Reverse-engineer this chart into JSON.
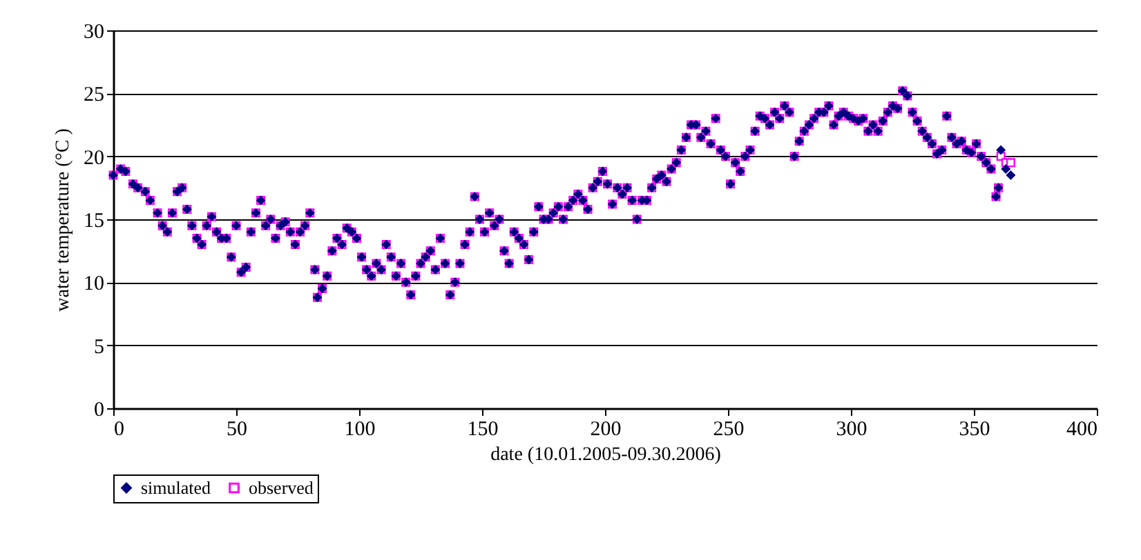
{
  "chart_data": {
    "type": "scatter",
    "xlabel": "date (10.01.2005-09.30.2006)",
    "ylabel": "water temperature (°C )",
    "xlim": [
      0,
      400
    ],
    "xticks": [
      0,
      50,
      100,
      150,
      200,
      250,
      300,
      350,
      400
    ],
    "ylim": [
      0,
      30
    ],
    "yticks": [
      0,
      5,
      10,
      15,
      20,
      25,
      30
    ],
    "grid": "y",
    "legend": "bottom",
    "x": [
      0,
      3,
      5,
      8,
      10,
      13,
      15,
      18,
      20,
      22,
      24,
      26,
      28,
      30,
      32,
      34,
      36,
      38,
      40,
      42,
      44,
      46,
      48,
      50,
      52,
      54,
      56,
      58,
      60,
      62,
      64,
      66,
      68,
      70,
      72,
      74,
      76,
      78,
      80,
      82,
      83,
      85,
      87,
      89,
      91,
      93,
      95,
      97,
      99,
      101,
      103,
      105,
      107,
      109,
      111,
      113,
      115,
      117,
      119,
      121,
      123,
      125,
      127,
      129,
      131,
      133,
      135,
      137,
      139,
      141,
      143,
      145,
      147,
      149,
      151,
      153,
      155,
      157,
      159,
      161,
      163,
      165,
      167,
      169,
      171,
      173,
      175,
      177,
      179,
      181,
      183,
      185,
      187,
      189,
      191,
      193,
      195,
      197,
      199,
      201,
      203,
      205,
      207,
      209,
      211,
      213,
      215,
      217,
      219,
      221,
      223,
      225,
      227,
      229,
      231,
      233,
      235,
      237,
      239,
      241,
      243,
      245,
      247,
      249,
      251,
      253,
      255,
      257,
      259,
      261,
      263,
      265,
      267,
      269,
      271,
      273,
      275,
      277,
      279,
      281,
      283,
      285,
      287,
      289,
      291,
      293,
      295,
      297,
      299,
      301,
      303,
      305,
      307,
      309,
      311,
      313,
      315,
      317,
      319,
      321,
      323,
      325,
      327,
      329,
      331,
      333,
      335,
      337,
      339,
      341,
      343,
      345,
      347,
      349,
      351,
      353,
      355,
      357,
      359,
      360,
      361,
      363,
      365
    ],
    "series": [
      {
        "name": "simulated",
        "color": "#000080",
        "marker": "diamond",
        "values": [
          18.5,
          19,
          18.8,
          17.8,
          17.5,
          17.2,
          16.5,
          15.5,
          14.5,
          14,
          15.5,
          17.2,
          17.5,
          15.8,
          14.5,
          13.5,
          13,
          14.5,
          15.2,
          14,
          13.5,
          13.5,
          12,
          14.5,
          10.8,
          11.2,
          14,
          15.5,
          16.5,
          14.5,
          15,
          13.5,
          14.5,
          14.8,
          14,
          13,
          14,
          14.5,
          15.5,
          11,
          8.8,
          9.5,
          10.5,
          12.5,
          13.5,
          13,
          14.3,
          14,
          13.5,
          12,
          11,
          10.5,
          11.5,
          11,
          13,
          12,
          10.5,
          11.5,
          10,
          9,
          10.5,
          11.5,
          12,
          12.5,
          11,
          13.5,
          11.5,
          9,
          10,
          11.5,
          13,
          14,
          16.8,
          15,
          14,
          15.5,
          14.5,
          15,
          12.5,
          11.5,
          14,
          13.5,
          13,
          11.8,
          14,
          16,
          15,
          15,
          15.5,
          16,
          15,
          16,
          16.5,
          17,
          16.5,
          15.8,
          17.5,
          18,
          18.8,
          17.8,
          16.2,
          17.5,
          17,
          17.5,
          16.5,
          15,
          16.5,
          16.5,
          17.5,
          18.2,
          18.5,
          18,
          19,
          19.5,
          20.5,
          21.5,
          22.5,
          22.5,
          21.5,
          22,
          21,
          23,
          20.5,
          20,
          17.8,
          19.5,
          18.8,
          20,
          20.5,
          22,
          23.2,
          23,
          22.5,
          23.5,
          23,
          24,
          23.5,
          20,
          21.2,
          22,
          22.5,
          23,
          23.5,
          23.5,
          24,
          22.5,
          23.2,
          23.5,
          23.2,
          23,
          22.8,
          23,
          22,
          22.5,
          22,
          22.8,
          23.5,
          24,
          23.8,
          25.2,
          24.8,
          23.5,
          22.8,
          22,
          21.5,
          21,
          20.2,
          20.5,
          23.2,
          21.5,
          21,
          21.2,
          20.5,
          20.3,
          21,
          20,
          19.5,
          19,
          16.8,
          17.5,
          20.5,
          19,
          18.5
        ]
      },
      {
        "name": "observed",
        "color": "#ff00ff",
        "marker": "square",
        "values": [
          18.5,
          19,
          18.8,
          17.8,
          17.5,
          17.2,
          16.5,
          15.5,
          14.5,
          14,
          15.5,
          17.2,
          17.5,
          15.8,
          14.5,
          13.5,
          13,
          14.5,
          15.2,
          14,
          13.5,
          13.5,
          12,
          14.5,
          10.8,
          11.2,
          14,
          15.5,
          16.5,
          14.5,
          15,
          13.5,
          14.5,
          14.8,
          14,
          13,
          14,
          14.5,
          15.5,
          11,
          8.8,
          9.5,
          10.5,
          12.5,
          13.5,
          13,
          14.3,
          14,
          13.5,
          12,
          11,
          10.5,
          11.5,
          11,
          13,
          12,
          10.5,
          11.5,
          10,
          9,
          10.5,
          11.5,
          12,
          12.5,
          11,
          13.5,
          11.5,
          9,
          10,
          11.5,
          13,
          14,
          16.8,
          15,
          14,
          15.5,
          14.5,
          15,
          12.5,
          11.5,
          14,
          13.5,
          13,
          11.8,
          14,
          16,
          15,
          15,
          15.5,
          16,
          15,
          16,
          16.5,
          17,
          16.5,
          15.8,
          17.5,
          18,
          18.8,
          17.8,
          16.2,
          17.5,
          17,
          17.5,
          16.5,
          15,
          16.5,
          16.5,
          17.5,
          18.2,
          18.5,
          18,
          19,
          19.5,
          20.5,
          21.5,
          22.5,
          22.5,
          21.5,
          22,
          21,
          23,
          20.5,
          20,
          17.8,
          19.5,
          18.8,
          20,
          20.5,
          22,
          23.2,
          23,
          22.5,
          23.5,
          23,
          24,
          23.5,
          20,
          21.2,
          22,
          22.5,
          23,
          23.5,
          23.5,
          24,
          22.5,
          23.2,
          23.5,
          23.2,
          23,
          22.8,
          23,
          22,
          22.5,
          22,
          22.8,
          23.5,
          24,
          23.8,
          25.2,
          24.8,
          23.5,
          22.8,
          22,
          21.5,
          21,
          20.2,
          20.5,
          23.2,
          21.5,
          21,
          21.2,
          20.5,
          20.3,
          21,
          20,
          19.5,
          19,
          16.8,
          17.5,
          20,
          19.5,
          19.5
        ]
      }
    ]
  }
}
